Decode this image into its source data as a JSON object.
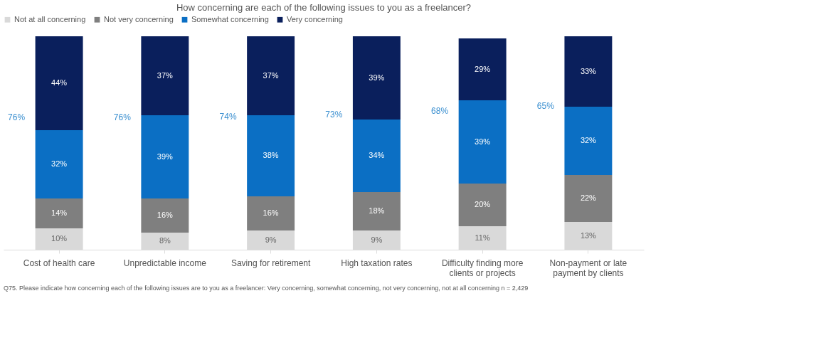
{
  "chart_data": {
    "type": "bar",
    "stacked": true,
    "title": "How concerning are each of the following issues to you as a freelancer?",
    "categories": [
      "Cost of health care",
      "Unpredictable income",
      "Saving for retirement",
      "High taxation rates",
      "Difficulty finding more clients or projects",
      "Non-payment or late payment by clients"
    ],
    "series": [
      {
        "name": "Not at all concerning",
        "color": "#d9d9d9",
        "values": [
          10,
          8,
          9,
          9,
          11,
          13
        ],
        "value_labels": [
          "10%",
          "8%",
          "9%",
          "9%",
          "11%",
          "13%"
        ]
      },
      {
        "name": "Not very concerning",
        "color": "#7f7f7f",
        "values": [
          14,
          16,
          16,
          18,
          20,
          22
        ],
        "value_labels": [
          "14%",
          "16%",
          "16%",
          "18%",
          "20%",
          "22%"
        ]
      },
      {
        "name": "Somewhat concerning",
        "color": "#0b6fc4",
        "values": [
          32,
          39,
          38,
          34,
          39,
          32
        ],
        "value_labels": [
          "32%",
          "39%",
          "38%",
          "34%",
          "39%",
          "32%"
        ]
      },
      {
        "name": "Very concerning",
        "color": "#0a1f5c",
        "values": [
          44,
          37,
          37,
          39,
          29,
          33
        ],
        "value_labels": [
          "44%",
          "37%",
          "37%",
          "39%",
          "29%",
          "33%"
        ]
      }
    ],
    "legend": "top",
    "annotations": [
      "76%",
      "76%",
      "74%",
      "73%",
      "68%",
      "65%",
      "Q75. Please indicate how concerning each of the following issues are to you as a freelancer: Very concerning, somewhat concerning, not very concerning, not at all concerning n = 2,429"
    ]
  }
}
